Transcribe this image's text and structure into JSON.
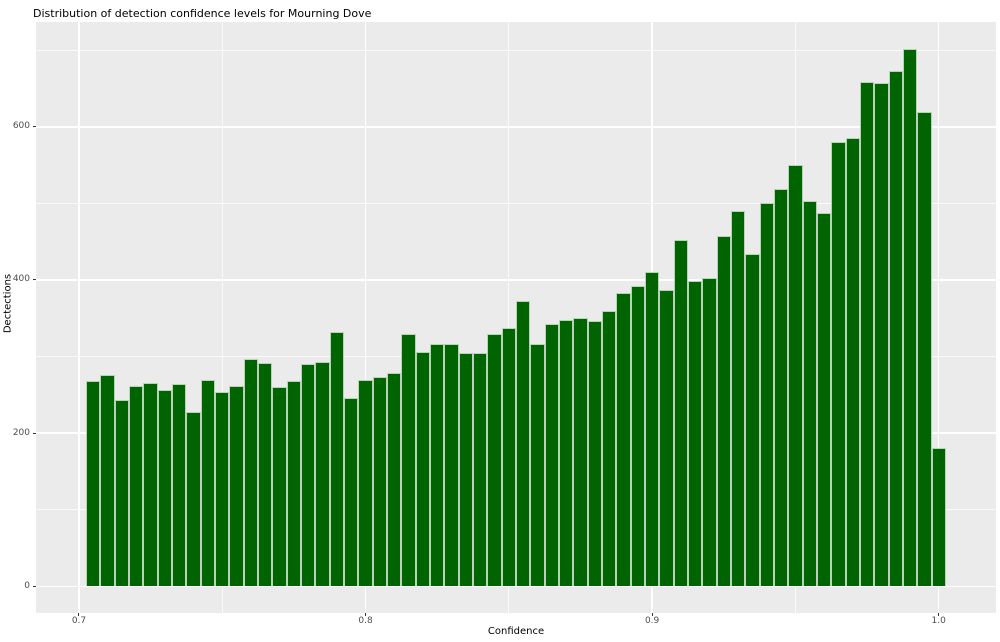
{
  "figure": {
    "title": "Distribution of detection confidence levels for Mourning Dove"
  },
  "chart_data": {
    "type": "bar",
    "subtype": "histogram",
    "title": "Distribution of detection confidence levels for Mourning Dove",
    "xlabel": "Confidence",
    "ylabel": "Dectections",
    "grid": true,
    "legend": false,
    "bin_width": 0.005,
    "x": [
      0.705,
      0.71,
      0.715,
      0.72,
      0.725,
      0.73,
      0.735,
      0.74,
      0.745,
      0.75,
      0.755,
      0.76,
      0.765,
      0.77,
      0.775,
      0.78,
      0.785,
      0.79,
      0.795,
      0.8,
      0.805,
      0.81,
      0.815,
      0.82,
      0.825,
      0.83,
      0.835,
      0.84,
      0.845,
      0.85,
      0.855,
      0.86,
      0.865,
      0.87,
      0.875,
      0.88,
      0.885,
      0.89,
      0.895,
      0.9,
      0.905,
      0.91,
      0.915,
      0.92,
      0.925,
      0.93,
      0.935,
      0.94,
      0.945,
      0.95,
      0.955,
      0.96,
      0.965,
      0.97,
      0.975,
      0.98,
      0.985,
      0.99,
      0.995,
      1.0
    ],
    "values": [
      268,
      276,
      243,
      261,
      266,
      256,
      264,
      228,
      270,
      254,
      261,
      297,
      292,
      260,
      268,
      290,
      293,
      332,
      246,
      269,
      273,
      278,
      330,
      306,
      317,
      317,
      305,
      304,
      329,
      337,
      372,
      317,
      342,
      348,
      350,
      347,
      359,
      383,
      392,
      410,
      387,
      452,
      399,
      402,
      458,
      490,
      434,
      501,
      519,
      550,
      503,
      487,
      580,
      586,
      659,
      657,
      673,
      702,
      620,
      180
    ],
    "x_ticks": [
      {
        "label": "0.7",
        "value": 0.7
      },
      {
        "label": "0.8",
        "value": 0.8
      },
      {
        "label": "0.9",
        "value": 0.9
      },
      {
        "label": "1.0",
        "value": 1.0
      }
    ],
    "y_ticks": [
      {
        "label": "0",
        "value": 0
      },
      {
        "label": "200",
        "value": 200
      },
      {
        "label": "400",
        "value": 400
      },
      {
        "label": "600",
        "value": 600
      }
    ],
    "x_minor_gridlines": [
      0.75,
      0.85,
      0.95
    ],
    "y_minor_gridlines": [
      100,
      300,
      500,
      700
    ],
    "xlim": [
      0.685,
      1.02
    ],
    "ylim": [
      -35,
      737
    ],
    "colors": {
      "bar_fill": "#006400",
      "bar_edge": "#b9d2b9",
      "panel_bg": "#ebebeb",
      "gridline": "#ffffff",
      "tick_label": "#4d4d4d",
      "axis_title": "#000000",
      "title": "#000000",
      "background": "#ffffff"
    }
  }
}
